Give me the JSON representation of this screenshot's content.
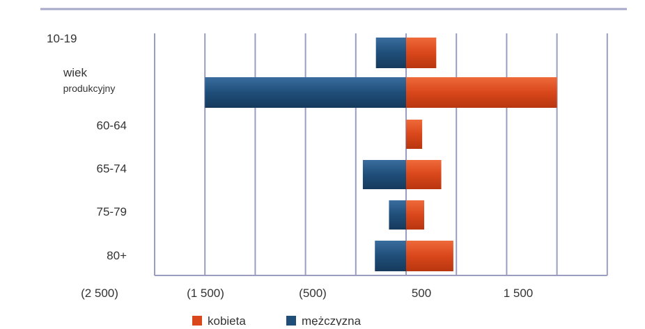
{
  "chart_data": {
    "type": "bar",
    "orientation": "horizontal",
    "layout": "butterfly",
    "categories": [
      "10-19",
      "wiek produkcyjny",
      "60-64",
      "65-74",
      "75-79",
      "80+"
    ],
    "series": [
      {
        "name": "kobieta",
        "color": "#d9471b",
        "values": [
          300,
          1500,
          160,
          350,
          180,
          470
        ]
      },
      {
        "name": "mężczyzna",
        "color": "#1f4e79",
        "values": [
          -300,
          -2000,
          0,
          -430,
          -170,
          -310
        ]
      }
    ],
    "xticks": [
      "(2 500)",
      "(1 500)",
      "(500)",
      "500",
      "1 500"
    ],
    "xlim": [
      -2500,
      2000
    ],
    "grid": true,
    "legend_position": "bottom"
  }
}
